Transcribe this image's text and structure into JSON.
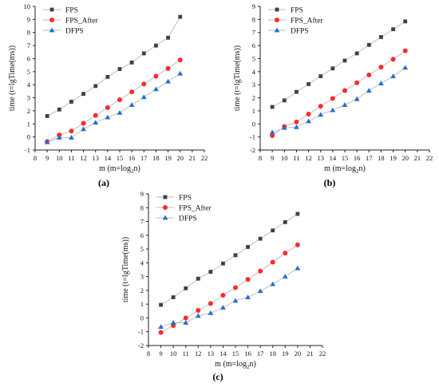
{
  "figure": {
    "panel_labels": [
      "(a)",
      "(b)",
      "(c)"
    ]
  },
  "chart_data": [
    {
      "type": "line",
      "panel": "(a)",
      "xlabel": "m (m=log2n)",
      "ylabel": "time (t=lgTime(ms))",
      "xlim": [
        8,
        22
      ],
      "ylim": [
        -1,
        10
      ],
      "xticks": [
        8,
        9,
        10,
        11,
        12,
        13,
        14,
        15,
        16,
        17,
        18,
        19,
        20,
        21,
        22
      ],
      "yticks": [
        -1,
        0,
        1,
        2,
        3,
        4,
        5,
        6,
        7,
        8,
        9,
        10
      ],
      "legend_position": "top-left",
      "x": [
        9,
        10,
        11,
        12,
        13,
        14,
        15,
        16,
        17,
        18,
        19,
        20
      ],
      "series": [
        {
          "name": "FPS",
          "marker": "square",
          "color": "#404040",
          "values": [
            1.6,
            2.1,
            2.7,
            3.3,
            3.9,
            4.6,
            5.2,
            5.7,
            6.4,
            7.0,
            7.6,
            9.2
          ]
        },
        {
          "name": "FPS_After",
          "marker": "circle",
          "color": "#ff2a2a",
          "values": [
            -0.35,
            0.15,
            0.45,
            1.05,
            1.65,
            2.25,
            2.85,
            3.45,
            4.05,
            4.65,
            5.25,
            5.9
          ]
        },
        {
          "name": "DFPS",
          "marker": "triangle",
          "color": "#1f6fd1",
          "values": [
            -0.4,
            -0.05,
            -0.05,
            0.6,
            1.1,
            1.5,
            1.85,
            2.45,
            3.05,
            3.65,
            4.25,
            4.85
          ]
        }
      ]
    },
    {
      "type": "line",
      "panel": "(b)",
      "xlabel": "m (m=log2n)",
      "ylabel": "time (t=lgTime(ms))",
      "xlim": [
        8,
        22
      ],
      "ylim": [
        -2,
        9
      ],
      "xticks": [
        8,
        9,
        10,
        11,
        12,
        13,
        14,
        15,
        16,
        17,
        18,
        19,
        20,
        21,
        22
      ],
      "yticks": [
        -2,
        -1,
        0,
        1,
        2,
        3,
        4,
        5,
        6,
        7,
        8,
        9
      ],
      "legend_position": "top-left",
      "x": [
        9,
        10,
        11,
        12,
        13,
        14,
        15,
        16,
        17,
        18,
        19,
        20
      ],
      "series": [
        {
          "name": "FPS",
          "marker": "square",
          "color": "#404040",
          "values": [
            1.3,
            1.8,
            2.45,
            3.05,
            3.65,
            4.25,
            4.85,
            5.4,
            6.05,
            6.65,
            7.25,
            7.85
          ]
        },
        {
          "name": "FPS_After",
          "marker": "circle",
          "color": "#ff2a2a",
          "values": [
            -0.9,
            -0.2,
            0.15,
            0.75,
            1.35,
            1.95,
            2.55,
            3.15,
            3.75,
            4.35,
            4.95,
            5.6
          ]
        },
        {
          "name": "DFPS",
          "marker": "triangle",
          "color": "#1f6fd1",
          "values": [
            -0.65,
            -0.3,
            -0.25,
            0.2,
            0.7,
            1.05,
            1.45,
            1.9,
            2.55,
            3.1,
            3.65,
            4.3
          ]
        }
      ]
    },
    {
      "type": "line",
      "panel": "(c)",
      "xlabel": "m (m=log2n)",
      "ylabel": "time (t=lgTime(ms))",
      "xlim": [
        8,
        22
      ],
      "ylim": [
        -2,
        9
      ],
      "xticks": [
        8,
        9,
        10,
        11,
        12,
        13,
        14,
        15,
        16,
        17,
        18,
        19,
        20,
        21,
        22
      ],
      "yticks": [
        -2,
        -1,
        0,
        1,
        2,
        3,
        4,
        5,
        6,
        7,
        8,
        9
      ],
      "legend_position": "top-left",
      "x": [
        9,
        10,
        11,
        12,
        13,
        14,
        15,
        16,
        17,
        18,
        19,
        20
      ],
      "series": [
        {
          "name": "FPS",
          "marker": "square",
          "color": "#404040",
          "values": [
            0.95,
            1.5,
            2.15,
            2.85,
            3.35,
            3.95,
            4.55,
            5.15,
            5.75,
            6.35,
            6.95,
            7.55
          ]
        },
        {
          "name": "FPS_After",
          "marker": "circle",
          "color": "#ff2a2a",
          "values": [
            -1.05,
            -0.55,
            0.0,
            0.55,
            1.05,
            1.65,
            2.2,
            2.8,
            3.4,
            4.05,
            4.7,
            5.3
          ]
        },
        {
          "name": "DFPS",
          "marker": "triangle",
          "color": "#1f6fd1",
          "values": [
            -0.65,
            -0.35,
            -0.35,
            0.15,
            0.35,
            0.75,
            1.25,
            1.5,
            1.95,
            2.45,
            3.0,
            3.6
          ]
        }
      ]
    }
  ]
}
